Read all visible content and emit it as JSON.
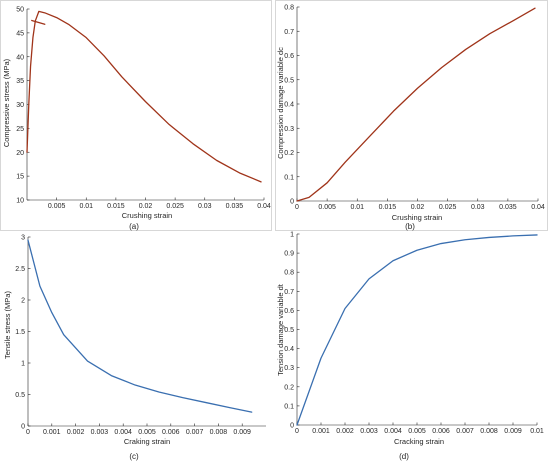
{
  "chart_data": [
    {
      "id": "a",
      "panel_label": "(a)",
      "type": "line",
      "xlabel": "Crushing strain",
      "ylabel": "Compressive stress (MPa)",
      "xlim": [
        0,
        0.04
      ],
      "ylim": [
        10,
        50
      ],
      "xticks": [
        0.005,
        0.01,
        0.015,
        0.02,
        0.025,
        0.03,
        0.035,
        0.04
      ],
      "xtick_labels": [
        "0.005",
        "0.01",
        "0.015",
        "0.02",
        "0.025",
        "0.03",
        "0.035",
        "0.04"
      ],
      "yticks": [
        10,
        15,
        20,
        25,
        30,
        35,
        40,
        45,
        50
      ],
      "ytick_labels": [
        "10",
        "15",
        "20",
        "25",
        "30",
        "35",
        "40",
        "45",
        "50"
      ],
      "color": "#a0341a",
      "series": [
        {
          "x": [
            0,
            0.0003,
            0.0006,
            0.001,
            0.0014,
            0.002,
            0.003,
            0.005,
            0.007,
            0.01,
            0.013,
            0.016,
            0.02,
            0.024,
            0.028,
            0.032,
            0.036,
            0.0395
          ],
          "y": [
            20,
            30,
            38,
            44,
            47.5,
            49.5,
            49.2,
            48.2,
            46.8,
            44,
            40.2,
            35.8,
            30.6,
            25.8,
            21.8,
            18.3,
            15.6,
            13.8
          ]
        },
        {
          "x": [
            0.0008,
            0.003
          ],
          "y": [
            47.6,
            46.8
          ]
        }
      ]
    },
    {
      "id": "b",
      "panel_label": "(b)",
      "type": "line",
      "xlabel": "Crushing strain",
      "ylabel": "Compression damage variable dc",
      "xlim": [
        0,
        0.04
      ],
      "ylim": [
        0,
        0.8
      ],
      "xticks": [
        0,
        0.005,
        0.01,
        0.015,
        0.02,
        0.025,
        0.03,
        0.035,
        0.04
      ],
      "xtick_labels": [
        "0",
        "0.005",
        "0.01",
        "0.015",
        "0.02",
        "0.025",
        "0.03",
        "0.035",
        "0.04"
      ],
      "yticks": [
        0,
        0.1,
        0.2,
        0.3,
        0.4,
        0.5,
        0.6,
        0.7,
        0.8
      ],
      "ytick_labels": [
        "0",
        "0.1",
        "0.2",
        "0.3",
        "0.4",
        "0.5",
        "0.6",
        "0.7",
        "0.8"
      ],
      "color": "#a0341a",
      "series": [
        {
          "x": [
            0,
            0.002,
            0.005,
            0.008,
            0.012,
            0.016,
            0.02,
            0.024,
            0.028,
            0.032,
            0.036,
            0.0395
          ],
          "y": [
            0,
            0.015,
            0.075,
            0.16,
            0.265,
            0.37,
            0.465,
            0.55,
            0.625,
            0.69,
            0.745,
            0.795
          ]
        }
      ]
    },
    {
      "id": "c",
      "panel_label": "(c)",
      "type": "line",
      "xlabel": "Craking strain",
      "ylabel": "Tensile stress (MPa)",
      "xlim": [
        0,
        0.01
      ],
      "ylim": [
        0,
        3
      ],
      "xticks": [
        0,
        0.001,
        0.002,
        0.003,
        0.004,
        0.005,
        0.006,
        0.007,
        0.008,
        0.009
      ],
      "xtick_labels": [
        "0",
        "0.001",
        "0.002",
        "0.003",
        "0.004",
        "0.005",
        "0.006",
        "0.007",
        "0.008",
        "0.009"
      ],
      "yticks": [
        0,
        0.5,
        1,
        1.5,
        2,
        2.5,
        3
      ],
      "ytick_labels": [
        "0",
        "0.5",
        "1",
        "1.5",
        "2",
        "2.5",
        "3"
      ],
      "color": "#3a6fb0",
      "series": [
        {
          "x": [
            0,
            0.0005,
            0.001,
            0.0015,
            0.0025,
            0.0035,
            0.0045,
            0.0055,
            0.0065,
            0.0075,
            0.0085,
            0.0094
          ],
          "y": [
            2.95,
            2.22,
            1.8,
            1.45,
            1.03,
            0.8,
            0.65,
            0.54,
            0.45,
            0.37,
            0.29,
            0.22
          ]
        }
      ]
    },
    {
      "id": "d",
      "panel_label": "(d)",
      "type": "line",
      "xlabel": "Cracking strain",
      "ylabel": "Tension damage variable dt",
      "xlim": [
        0,
        0.01
      ],
      "ylim": [
        0,
        1
      ],
      "xticks": [
        0,
        0.001,
        0.002,
        0.003,
        0.004,
        0.005,
        0.006,
        0.007,
        0.008,
        0.009,
        0.01
      ],
      "xtick_labels": [
        "0",
        "0.001",
        "0.002",
        "0.003",
        "0.004",
        "0.005",
        "0.006",
        "0.007",
        "0.008",
        "0.009",
        "0.01"
      ],
      "yticks": [
        0,
        0.1,
        0.2,
        0.3,
        0.4,
        0.5,
        0.6,
        0.7,
        0.8,
        0.9,
        1
      ],
      "ytick_labels": [
        "0",
        "0.1",
        "0.2",
        "0.3",
        "0.4",
        "0.5",
        "0.6",
        "0.7",
        "0.8",
        "0.9",
        "1"
      ],
      "color": "#3a6fb0",
      "series": [
        {
          "x": [
            0,
            0.001,
            0.002,
            0.003,
            0.004,
            0.005,
            0.006,
            0.007,
            0.008,
            0.009,
            0.01
          ],
          "y": [
            0,
            0.35,
            0.61,
            0.765,
            0.86,
            0.915,
            0.95,
            0.97,
            0.982,
            0.99,
            0.995
          ]
        }
      ]
    }
  ]
}
